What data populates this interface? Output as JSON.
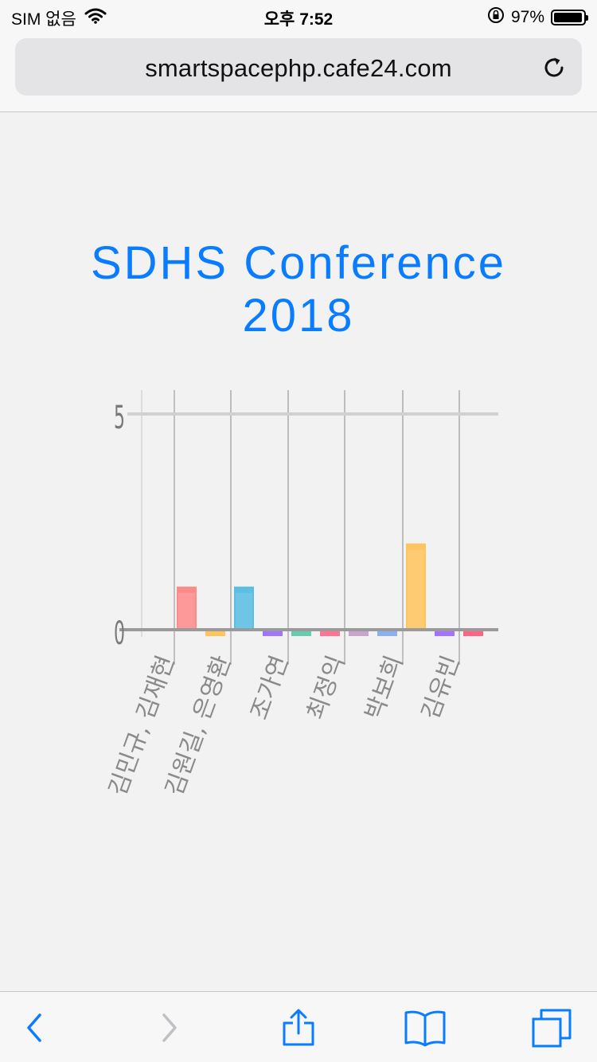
{
  "status_bar": {
    "carrier": "SIM 없음",
    "time": "오후 7:52",
    "battery_percent": "97%",
    "battery_level": 0.97,
    "icons": [
      "wifi-icon",
      "orientation-lock-icon",
      "battery-icon"
    ]
  },
  "browser": {
    "url": "smartspacephp.cafe24.com",
    "toolbar": [
      "back-icon",
      "forward-icon",
      "share-icon",
      "bookmarks-icon",
      "tabs-icon"
    ],
    "accent_color": "#0a7cff"
  },
  "page": {
    "title_line1": "SDHS Conference",
    "title_line2": "2018"
  },
  "chart_data": {
    "type": "bar",
    "ylim": [
      0,
      5
    ],
    "y_ticks": [
      "0",
      "5"
    ],
    "x_tick_labels": [
      "김민규, 김재현",
      "김원길, 은영환",
      "조가연",
      "최정익",
      "박보희",
      "김유빈"
    ],
    "series_values": [
      1,
      -0.1,
      1,
      -0.1,
      -0.1,
      -0.1,
      -0.1,
      -0.1,
      2,
      -0.1,
      -0.1
    ],
    "colors": [
      "#ff7f7f",
      "#ffc04d",
      "#4bb8e0",
      "#9966ff",
      "#55c8a8",
      "#ff6688",
      "#c79bc9",
      "#7fa8f0",
      "#ffbf50",
      "#9966ff",
      "#ff5577"
    ],
    "grid": true
  }
}
